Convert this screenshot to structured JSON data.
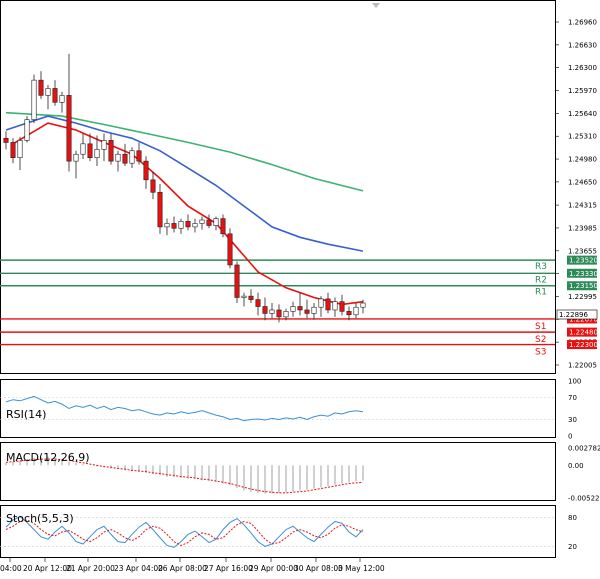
{
  "colors": {
    "bull": "#2e8b57",
    "bear": "#e81010",
    "ma_fast": "#e81010",
    "ma_mid": "#3a5fd0",
    "ma_slow": "#3cb371",
    "resist": "#2e8b57",
    "support": "#e81010",
    "rsi": "#3b8fd9",
    "macd_signal": "#e81010",
    "macd_hist": "#b0b0b0",
    "stoch_main": "#3b8fd9",
    "stoch_signal": "#e81010"
  },
  "chart_data": {
    "type": "candlestick",
    "ylim": [
      1.22005,
      1.2695
    ],
    "price_ticks": [
      "1.26960",
      "1.26630",
      "1.26300",
      "1.25970",
      "1.25640",
      "1.25310",
      "1.24980",
      "1.24650",
      "1.24315",
      "1.23985",
      "1.23655",
      "1.23325",
      "1.22995",
      "1.22665",
      "1.22335",
      "1.22005"
    ],
    "x_ticks": [
      "04:00",
      "20 Apr 12:00",
      "21 Apr 20:00",
      "23 Apr 04:00",
      "26 Apr 08:00",
      "27 Apr 16:00",
      "29 Apr 00:00",
      "30 Apr 08:00",
      "3 May 12:00"
    ],
    "current_price": "1.22896",
    "candles": [
      [
        1.2528,
        1.2538,
        1.2512,
        1.2522
      ],
      [
        1.2522,
        1.2528,
        1.2492,
        1.25
      ],
      [
        1.25,
        1.253,
        1.2482,
        1.2525
      ],
      [
        1.2525,
        1.256,
        1.2522,
        1.2555
      ],
      [
        1.2555,
        1.262,
        1.255,
        1.2612
      ],
      [
        1.2612,
        1.2625,
        1.2585,
        1.259
      ],
      [
        1.259,
        1.2605,
        1.257,
        1.26
      ],
      [
        1.26,
        1.2612,
        1.2575,
        1.258
      ],
      [
        1.258,
        1.2595,
        1.2565,
        1.259
      ],
      [
        1.259,
        1.265,
        1.248,
        1.2495
      ],
      [
        1.2495,
        1.251,
        1.247,
        1.2505
      ],
      [
        1.2505,
        1.2535,
        1.2498,
        1.252
      ],
      [
        1.252,
        1.2535,
        1.2495,
        1.25
      ],
      [
        1.25,
        1.2532,
        1.2488,
        1.2512
      ],
      [
        1.2512,
        1.2535,
        1.2495,
        1.2525
      ],
      [
        1.2525,
        1.2535,
        1.249,
        1.2495
      ],
      [
        1.2495,
        1.251,
        1.248,
        1.2505
      ],
      [
        1.2505,
        1.252,
        1.2488,
        1.2492
      ],
      [
        1.2492,
        1.2515,
        1.2485,
        1.251
      ],
      [
        1.251,
        1.2522,
        1.249,
        1.2495
      ],
      [
        1.2495,
        1.2502,
        1.2455,
        1.2468
      ],
      [
        1.2468,
        1.248,
        1.244,
        1.245
      ],
      [
        1.245,
        1.2462,
        1.239,
        1.24
      ],
      [
        1.24,
        1.2412,
        1.2388,
        1.2405
      ],
      [
        1.2405,
        1.2415,
        1.2392,
        1.2398
      ],
      [
        1.2398,
        1.2412,
        1.239,
        1.2408
      ],
      [
        1.2408,
        1.2418,
        1.2395,
        1.24
      ],
      [
        1.24,
        1.2412,
        1.2392,
        1.2405
      ],
      [
        1.2405,
        1.2415,
        1.2396,
        1.241
      ],
      [
        1.241,
        1.2418,
        1.2398,
        1.2402
      ],
      [
        1.2402,
        1.2415,
        1.2395,
        1.2412
      ],
      [
        1.2412,
        1.2418,
        1.2385,
        1.239
      ],
      [
        1.239,
        1.2398,
        1.234,
        1.2345
      ],
      [
        1.2345,
        1.235,
        1.229,
        1.2298
      ],
      [
        1.2298,
        1.2305,
        1.2285,
        1.23
      ],
      [
        1.23,
        1.231,
        1.229,
        1.2295
      ],
      [
        1.2295,
        1.2305,
        1.2272,
        1.2285
      ],
      [
        1.2285,
        1.2298,
        1.2265,
        1.2275
      ],
      [
        1.2275,
        1.229,
        1.2268,
        1.228
      ],
      [
        1.228,
        1.2288,
        1.2262,
        1.227
      ],
      [
        1.227,
        1.2282,
        1.2265,
        1.2278
      ],
      [
        1.2278,
        1.2292,
        1.227,
        1.2285
      ],
      [
        1.2285,
        1.2305,
        1.2272,
        1.228
      ],
      [
        1.228,
        1.2295,
        1.2268,
        1.2275
      ],
      [
        1.2275,
        1.229,
        1.2266,
        1.2284
      ],
      [
        1.2284,
        1.23,
        1.227,
        1.2296
      ],
      [
        1.2296,
        1.2305,
        1.2275,
        1.228
      ],
      [
        1.228,
        1.2298,
        1.227,
        1.2292
      ],
      [
        1.2292,
        1.2302,
        1.2272,
        1.2278
      ],
      [
        1.2278,
        1.2285,
        1.2265,
        1.2273
      ],
      [
        1.2273,
        1.229,
        1.2268,
        1.2284
      ],
      [
        1.2284,
        1.2295,
        1.2275,
        1.229
      ]
    ],
    "ma_fast": [
      [
        1,
        1.252
      ],
      [
        6,
        1.255
      ],
      [
        10,
        1.254
      ],
      [
        14,
        1.2522
      ],
      [
        18,
        1.2505
      ],
      [
        22,
        1.247
      ],
      [
        26,
        1.243
      ],
      [
        30,
        1.2405
      ],
      [
        33,
        1.237
      ],
      [
        36,
        1.2335
      ],
      [
        40,
        1.2312
      ],
      [
        44,
        1.2298
      ],
      [
        48,
        1.2288
      ],
      [
        51,
        1.2292
      ]
    ],
    "ma_mid": [
      [
        0,
        1.254
      ],
      [
        6,
        1.256
      ],
      [
        10,
        1.255
      ],
      [
        14,
        1.2538
      ],
      [
        18,
        1.2528
      ],
      [
        22,
        1.251
      ],
      [
        26,
        1.2485
      ],
      [
        30,
        1.246
      ],
      [
        34,
        1.243
      ],
      [
        38,
        1.24
      ],
      [
        42,
        1.2385
      ],
      [
        46,
        1.2375
      ],
      [
        51,
        1.2365
      ]
    ],
    "ma_slow": [
      [
        0,
        1.2565
      ],
      [
        8,
        1.256
      ],
      [
        14,
        1.2548
      ],
      [
        20,
        1.2535
      ],
      [
        26,
        1.2522
      ],
      [
        32,
        1.2508
      ],
      [
        38,
        1.249
      ],
      [
        44,
        1.247
      ],
      [
        51,
        1.2452
      ]
    ],
    "levels": [
      {
        "name": "R3",
        "value": 1.2352,
        "tag": "1.23520",
        "kind": "resist"
      },
      {
        "name": "R2",
        "value": 1.2333,
        "tag": "1.23330",
        "kind": "resist"
      },
      {
        "name": "R1",
        "value": 1.2315,
        "tag": "1.23150",
        "kind": "resist"
      },
      {
        "name": "S1",
        "value": 1.2267,
        "tag": "1.22670",
        "kind": "support"
      },
      {
        "name": "S2",
        "value": 1.2248,
        "tag": "1.22480",
        "kind": "support"
      },
      {
        "name": "S3",
        "value": 1.223,
        "tag": "1.22300",
        "kind": "support"
      }
    ],
    "rsi": {
      "label": "RSI(14)",
      "ticks": [
        "100",
        "70",
        "30",
        "0"
      ],
      "values": [
        62,
        66,
        64,
        68,
        72,
        66,
        60,
        63,
        58,
        50,
        55,
        52,
        56,
        50,
        54,
        48,
        52,
        50,
        46,
        48,
        44,
        40,
        38,
        42,
        40,
        44,
        41,
        43,
        46,
        42,
        38,
        35,
        30,
        32,
        28,
        30,
        31,
        29,
        32,
        30,
        33,
        31,
        34,
        30,
        35,
        38,
        36,
        42,
        40,
        44,
        46,
        44
      ]
    },
    "macd": {
      "label": "MACD(12,26,9)",
      "ticks": [
        "0.002782",
        "0.00",
        "-0.00522"
      ],
      "ylim": [
        -0.00522,
        0.002782
      ],
      "hist": [
        0.0004,
        0.0006,
        0.0008,
        0.001,
        0.0012,
        0.0013,
        0.0014,
        0.0012,
        0.001,
        0.0006,
        0.0004,
        0.0002,
        0,
        -0.0002,
        -0.0003,
        -0.0005,
        -0.0006,
        -0.0008,
        -0.0009,
        -0.001,
        -0.0012,
        -0.0014,
        -0.0016,
        -0.0018,
        -0.0019,
        -0.002,
        -0.0021,
        -0.0022,
        -0.0024,
        -0.0025,
        -0.0027,
        -0.0029,
        -0.0032,
        -0.0036,
        -0.004,
        -0.0042,
        -0.0044,
        -0.0045,
        -0.0045,
        -0.0044,
        -0.0043,
        -0.0042,
        -0.004,
        -0.0039,
        -0.0037,
        -0.0035,
        -0.0033,
        -0.0031,
        -0.0029,
        -0.0027,
        -0.0025,
        -0.0024
      ],
      "signal": [
        0.0005,
        0.0006,
        0.0007,
        0.0008,
        0.0009,
        0.001,
        0.001,
        0.001,
        0.0009,
        0.0008,
        0.0006,
        0.0004,
        0.0002,
        0,
        -0.0002,
        -0.0003,
        -0.0005,
        -0.0006,
        -0.0008,
        -0.0009,
        -0.001,
        -0.0012,
        -0.0013,
        -0.0015,
        -0.0016,
        -0.0018,
        -0.0019,
        -0.002,
        -0.0022,
        -0.0023,
        -0.0025,
        -0.0027,
        -0.0029,
        -0.0032,
        -0.0035,
        -0.0038,
        -0.004,
        -0.0042,
        -0.0043,
        -0.0044,
        -0.0044,
        -0.0043,
        -0.0042,
        -0.0041,
        -0.0039,
        -0.0037,
        -0.0035,
        -0.0033,
        -0.0031,
        -0.0029,
        -0.0028,
        -0.0027
      ]
    },
    "stoch": {
      "label": "Stoch(5,5,3)",
      "ticks": [
        "80",
        "20"
      ],
      "main": [
        60,
        75,
        82,
        70,
        55,
        40,
        35,
        50,
        62,
        48,
        30,
        25,
        40,
        55,
        62,
        45,
        30,
        28,
        45,
        60,
        70,
        55,
        38,
        22,
        18,
        30,
        45,
        52,
        40,
        28,
        35,
        55,
        70,
        78,
        65,
        48,
        30,
        20,
        25,
        40,
        55,
        62,
        50,
        38,
        30,
        45,
        60,
        72,
        68,
        50,
        40,
        55
      ],
      "signal": [
        55,
        62,
        72,
        75,
        68,
        55,
        45,
        42,
        50,
        53,
        45,
        35,
        30,
        38,
        50,
        55,
        48,
        38,
        32,
        40,
        55,
        62,
        58,
        45,
        30,
        22,
        28,
        40,
        48,
        45,
        35,
        38,
        52,
        65,
        72,
        68,
        52,
        35,
        25,
        28,
        38,
        50,
        55,
        50,
        42,
        38,
        45,
        58,
        65,
        62,
        55,
        50
      ]
    }
  }
}
